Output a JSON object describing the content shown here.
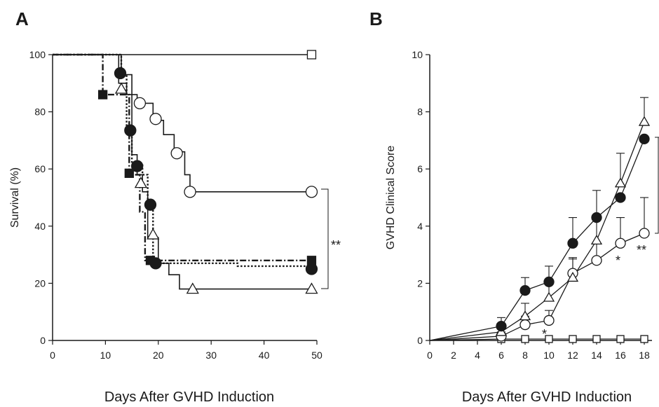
{
  "panel_labels": {
    "a": "A",
    "b": "B"
  },
  "annotations": {
    "sig_a": "**",
    "sig_b_star1": "*",
    "sig_b_star2": "*",
    "sig_b_star3": "**"
  },
  "colors": {
    "ink": "#1a1a1a",
    "background": "#ffffff"
  },
  "chart_data": [
    {
      "type": "line",
      "subtype": "kaplan-meier step",
      "panel": "A",
      "xlabel": "Days After GVHD Induction",
      "ylabel": "Survival (%)",
      "xlim": [
        0,
        50
      ],
      "ylim": [
        0,
        100
      ],
      "xticks": [
        0,
        10,
        20,
        30,
        40,
        50
      ],
      "yticks": [
        0,
        20,
        40,
        60,
        80,
        100
      ],
      "grid": false,
      "series": [
        {
          "marker": "open-square",
          "line": "solid",
          "steps": [
            [
              0,
              100
            ],
            [
              49,
              100
            ]
          ],
          "markers": [
            [
              49,
              100
            ]
          ]
        },
        {
          "marker": "open-circle",
          "line": "solid",
          "steps": [
            [
              0,
              100
            ],
            [
              13,
              100
            ],
            [
              13,
              93
            ],
            [
              15,
              93
            ],
            [
              15,
              86
            ],
            [
              16,
              86
            ],
            [
              16,
              83
            ],
            [
              19,
              83
            ],
            [
              19,
              77
            ],
            [
              21,
              77
            ],
            [
              21,
              72
            ],
            [
              23,
              72
            ],
            [
              23,
              66
            ],
            [
              25,
              66
            ],
            [
              25,
              58
            ],
            [
              26,
              58
            ],
            [
              26,
              52
            ],
            [
              49,
              52
            ]
          ],
          "markers": [
            [
              16.5,
              83
            ],
            [
              19.5,
              77.5
            ],
            [
              23.5,
              65.5
            ],
            [
              26,
              52
            ],
            [
              49,
              52
            ]
          ]
        },
        {
          "marker": "open-triangle",
          "line": "solid",
          "steps": [
            [
              0,
              100
            ],
            [
              12.5,
              100
            ],
            [
              12.5,
              90
            ],
            [
              14,
              90
            ],
            [
              14,
              86
            ],
            [
              15,
              86
            ],
            [
              15,
              65
            ],
            [
              16,
              65
            ],
            [
              16,
              58
            ],
            [
              17,
              58
            ],
            [
              17,
              52
            ],
            [
              18,
              52
            ],
            [
              18,
              36
            ],
            [
              20,
              36
            ],
            [
              20,
              27
            ],
            [
              22,
              27
            ],
            [
              22,
              23
            ],
            [
              24,
              23
            ],
            [
              24,
              18
            ],
            [
              49,
              18
            ]
          ],
          "markers": [
            [
              13,
              88
            ],
            [
              16.7,
              55
            ],
            [
              19,
              37
            ],
            [
              26.5,
              18
            ],
            [
              49,
              18
            ]
          ]
        },
        {
          "marker": "filled-circle",
          "line": "dotted",
          "steps": [
            [
              0,
              100
            ],
            [
              13,
              100
            ],
            [
              13,
              93
            ],
            [
              14,
              93
            ],
            [
              14,
              74
            ],
            [
              15,
              74
            ],
            [
              15,
              62
            ],
            [
              17,
              62
            ],
            [
              17,
              58
            ],
            [
              18,
              58
            ],
            [
              18,
              48
            ],
            [
              19,
              48
            ],
            [
              19,
              27
            ],
            [
              35,
              27
            ],
            [
              35,
              26
            ],
            [
              49,
              26
            ]
          ],
          "markers": [
            [
              12.8,
              93.5
            ],
            [
              14.7,
              73.5
            ],
            [
              16,
              61
            ],
            [
              18.5,
              47.5
            ],
            [
              19.5,
              27
            ],
            [
              49,
              25
            ]
          ]
        },
        {
          "marker": "filled-square",
          "line": "dash-dot",
          "steps": [
            [
              0,
              100
            ],
            [
              9.5,
              100
            ],
            [
              9.5,
              86
            ],
            [
              14.5,
              86
            ],
            [
              14.5,
              58
            ],
            [
              16.5,
              58
            ],
            [
              16.5,
              45
            ],
            [
              17.5,
              45
            ],
            [
              17.5,
              28
            ],
            [
              49,
              28
            ]
          ],
          "markers": [
            [
              9.5,
              86
            ],
            [
              14.5,
              58.5
            ],
            [
              18.5,
              28
            ],
            [
              49,
              28
            ]
          ]
        }
      ]
    },
    {
      "type": "line",
      "panel": "B",
      "xlabel": "Days After GVHD Induction",
      "ylabel": "GVHD Clinical Score",
      "xlim": [
        0,
        18
      ],
      "ylim": [
        0,
        10
      ],
      "xticks": [
        0,
        2,
        4,
        6,
        8,
        10,
        12,
        14,
        16,
        18
      ],
      "yticks": [
        0,
        2,
        4,
        6,
        8,
        10
      ],
      "grid": false,
      "series": [
        {
          "marker": "open-square",
          "x": [
            0,
            6,
            8,
            10,
            12,
            14,
            16,
            18
          ],
          "y": [
            0,
            0.05,
            0.05,
            0.05,
            0.05,
            0.05,
            0.05,
            0.05
          ],
          "err": [
            0,
            0,
            0,
            0,
            0,
            0,
            0,
            0
          ]
        },
        {
          "marker": "open-circle",
          "x": [
            0,
            6,
            8,
            10,
            12,
            14,
            16,
            18
          ],
          "y": [
            0,
            0.15,
            0.55,
            0.7,
            2.35,
            2.8,
            3.4,
            3.75
          ],
          "err": [
            0,
            0.15,
            0.3,
            0.35,
            0.5,
            0.6,
            0.9,
            1.25
          ]
        },
        {
          "marker": "open-triangle",
          "x": [
            0,
            6,
            8,
            10,
            12,
            14,
            16,
            18
          ],
          "y": [
            0,
            0.3,
            0.85,
            1.5,
            2.2,
            3.5,
            5.5,
            7.65
          ],
          "err": [
            0,
            0.2,
            0.45,
            0.55,
            0.7,
            0.9,
            1.05,
            0.85
          ]
        },
        {
          "marker": "filled-circle",
          "x": [
            0,
            6,
            8,
            10,
            12,
            14,
            16,
            18
          ],
          "y": [
            0,
            0.5,
            1.75,
            2.05,
            3.4,
            4.3,
            5.0,
            7.05
          ],
          "err": [
            0,
            0.3,
            0.45,
            0.55,
            0.9,
            0.95,
            0,
            0
          ]
        }
      ]
    }
  ]
}
